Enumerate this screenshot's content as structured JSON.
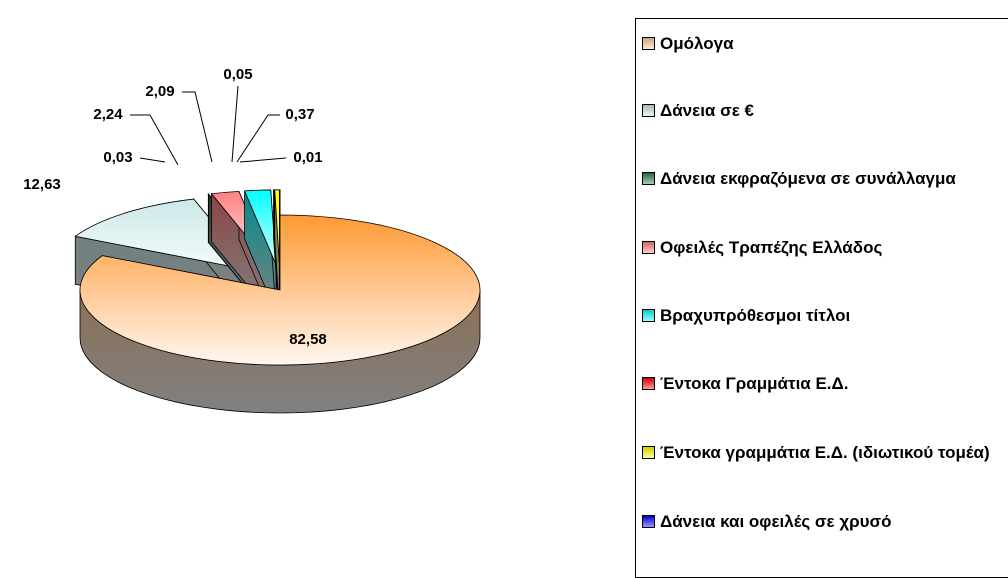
{
  "chart_data": {
    "type": "pie3d",
    "categories": [
      "Ομόλογα",
      "Δάνεια σε €",
      "Δάνεια εκφραζόμενα σε συνάλλαγμα",
      "Οφειλές Τραπέζης Ελλάδος",
      "Βραχυπρόθεσμοι τίτλοι",
      "Έντοκα Γραμμάτια Ε.Δ.",
      "Έντοκα γραμμάτια Ε.Δ. (ιδιωτικού τομέα)",
      "Δάνεια και οφειλές σε χρυσό"
    ],
    "values": [
      82.58,
      12.63,
      0.03,
      2.24,
      2.09,
      0.05,
      0.37,
      0.01
    ],
    "value_labels": [
      "82,58",
      "12,63",
      "0,03",
      "2,24",
      "2,09",
      "0,05",
      "0,37",
      "0,01"
    ],
    "colors": [
      "#ffcc99",
      "#cce8e8",
      "#2e7d4f",
      "#ff8080",
      "#00ffff",
      "#ff0000",
      "#ffff00",
      "#0000ff"
    ],
    "legend": "right"
  }
}
